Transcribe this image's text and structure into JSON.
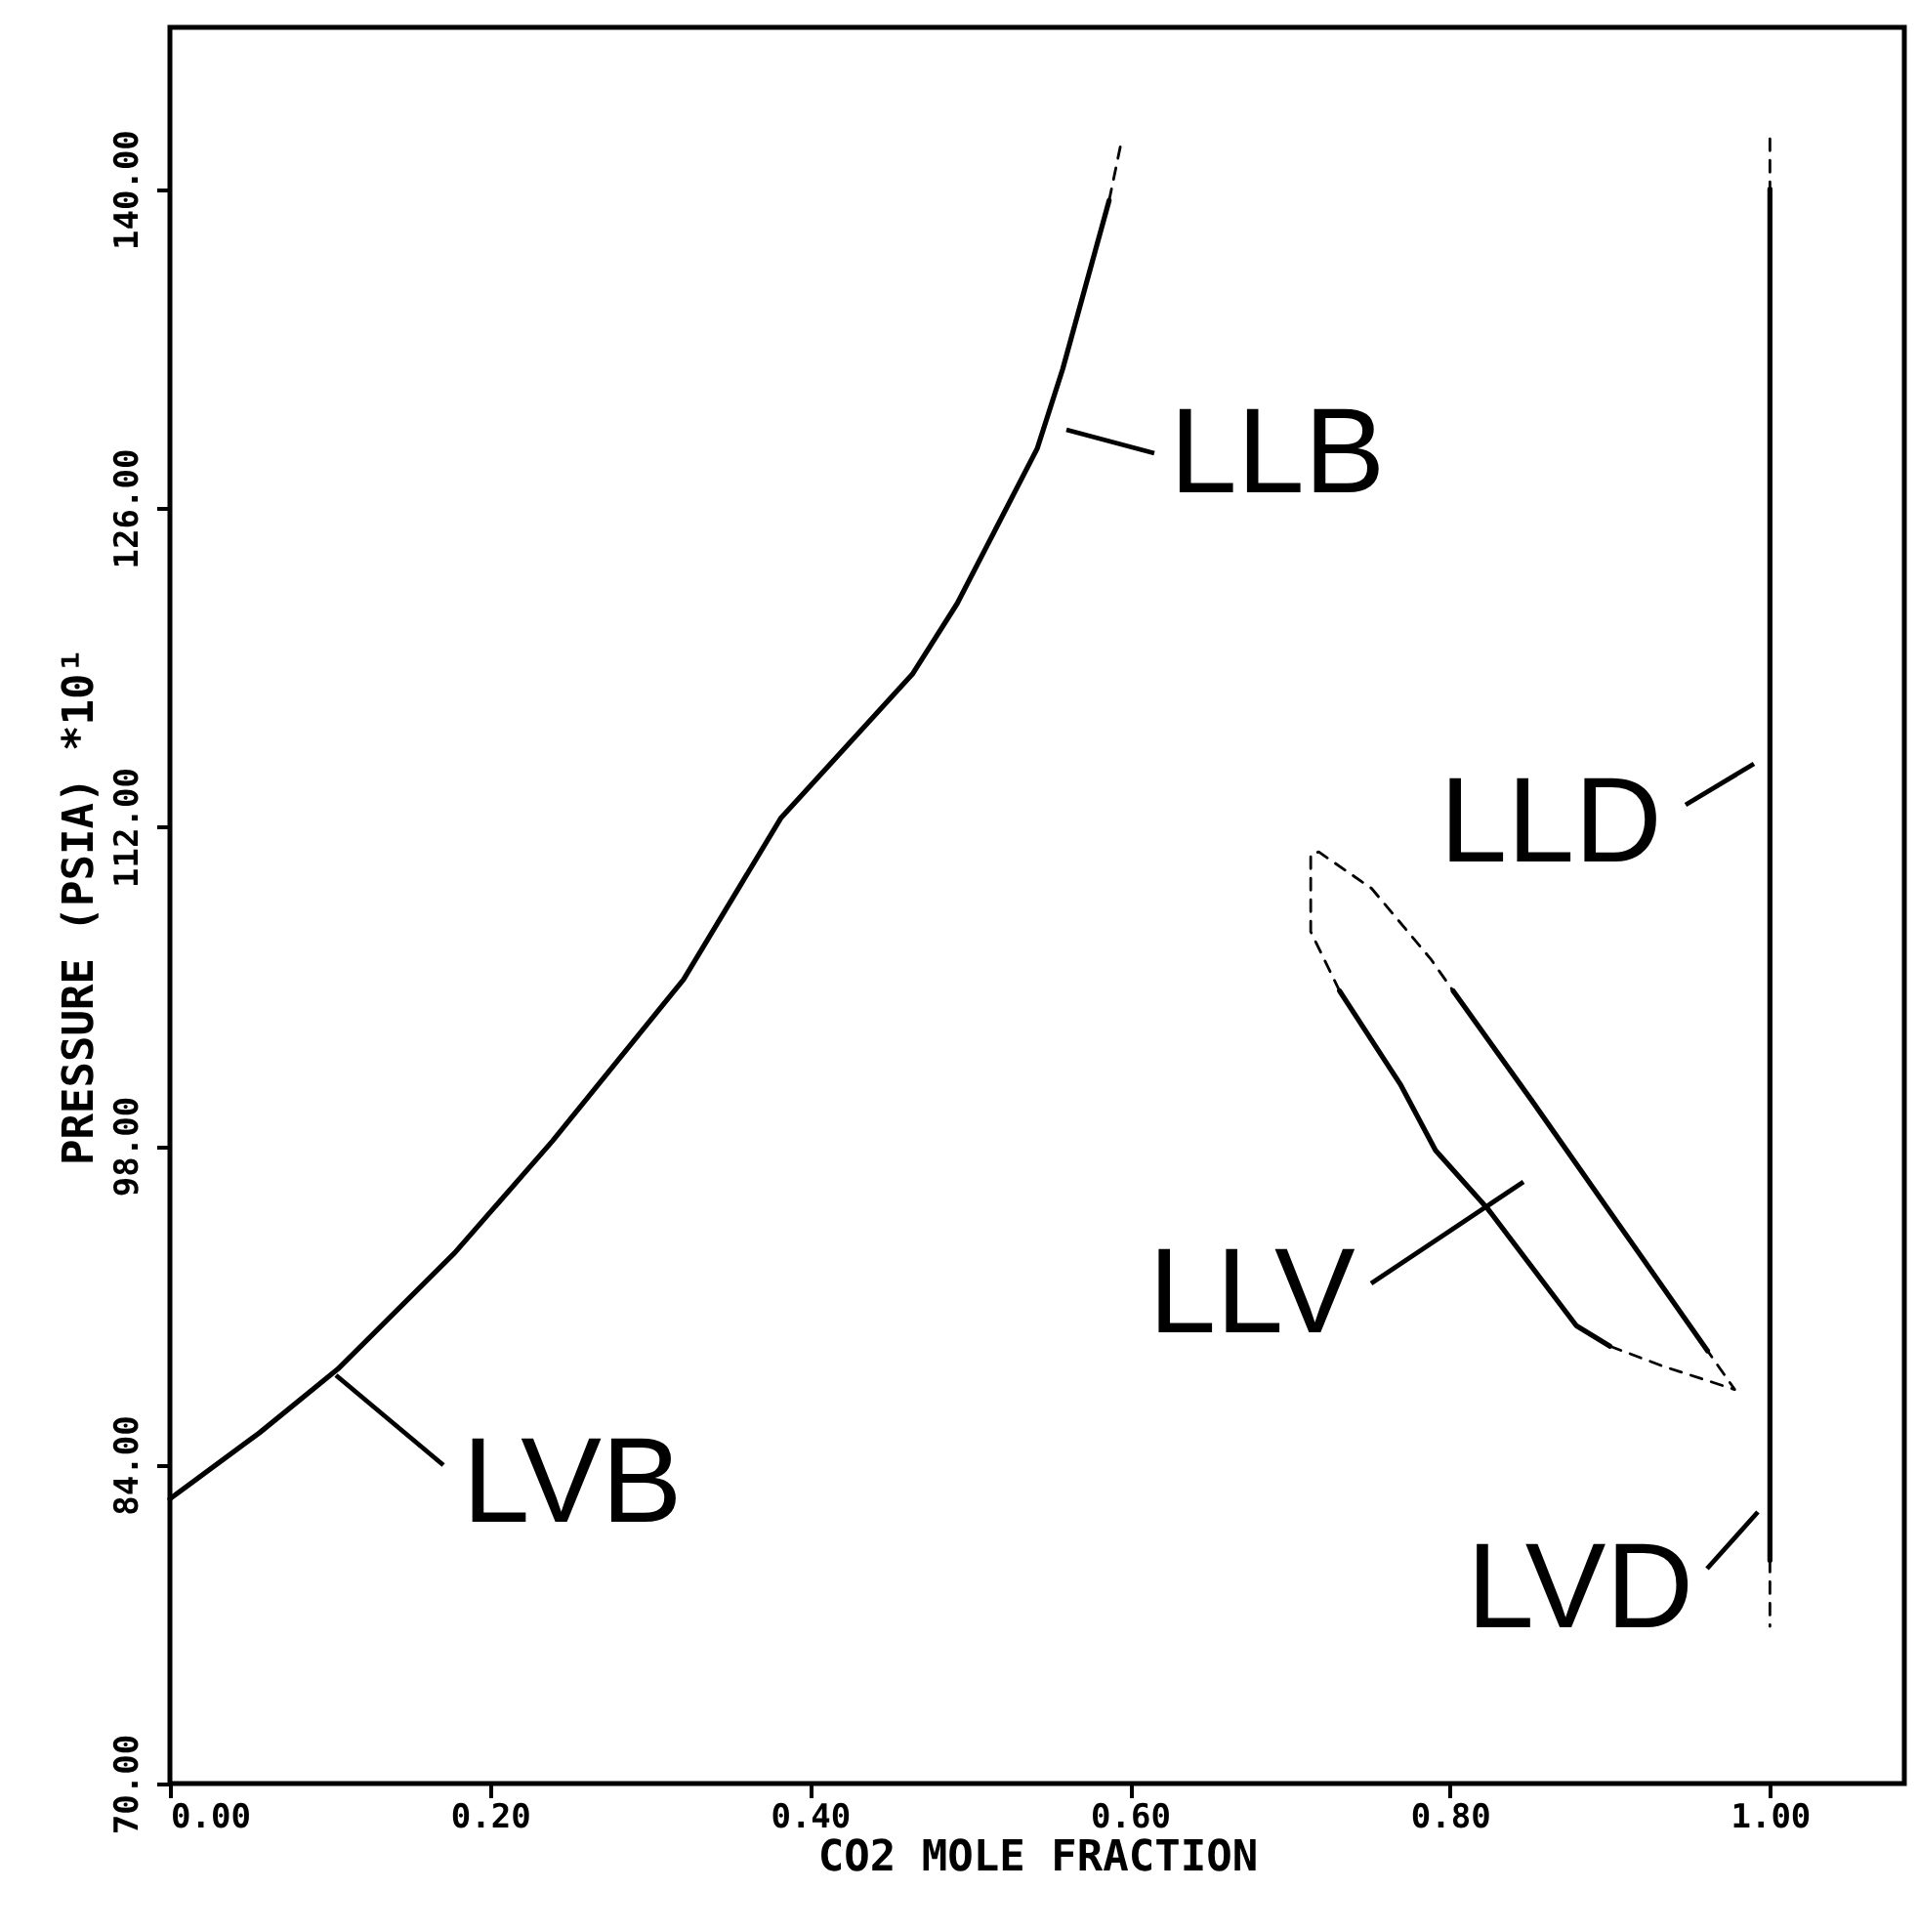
{
  "chart_data": {
    "type": "line",
    "xlabel": "CO2 MOLE FRACTION",
    "ylabel": "PRESSURE (PSIA) *10¹",
    "xlim": [
      0,
      1.084
    ],
    "ylim": [
      70,
      147.1
    ],
    "xticks": [
      {
        "value": 0,
        "label": "0.00"
      },
      {
        "value": 0.2,
        "label": "0.20"
      },
      {
        "value": 0.4,
        "label": "0.40"
      },
      {
        "value": 0.6,
        "label": "0.60"
      },
      {
        "value": 0.8,
        "label": "0.80"
      },
      {
        "value": 1.0,
        "label": "1.00"
      }
    ],
    "yticks": [
      {
        "value": 70,
        "label": "70.00"
      },
      {
        "value": 84,
        "label": "84.00"
      },
      {
        "value": 98,
        "label": "98.00"
      },
      {
        "value": 112,
        "label": "112.00"
      },
      {
        "value": 126,
        "label": "126.00"
      },
      {
        "value": 140,
        "label": "140.00"
      }
    ],
    "grid": false,
    "series": [
      {
        "color": "#000000",
        "line_style": "solid",
        "x": [
          0,
          0.056,
          0.105,
          0.178,
          0.239,
          0.321,
          0.382,
          0.464,
          0.492,
          0.542,
          0.558,
          0.587
        ],
        "values": [
          82.5,
          85.4,
          88.2,
          93.3,
          98.2,
          105.3,
          112.4,
          118.7,
          121.8,
          128.6,
          132.1,
          139.5
        ]
      },
      {
        "color": "#000000",
        "line_style": "dashed",
        "x": [
          0.587,
          0.595
        ],
        "values": [
          139.5,
          142.2
        ]
      },
      {
        "color": "#000000",
        "line_style": "solid",
        "x": [
          0.731,
          0.769,
          0.791,
          0.824,
          0.879,
          0.9
        ],
        "values": [
          104.8,
          100.7,
          97.8,
          95.2,
          90.1,
          89.2
        ]
      },
      {
        "color": "#000000",
        "line_style": "solid",
        "x": [
          0.802,
          0.851,
          0.906,
          0.961
        ],
        "values": [
          104.8,
          100.0,
          94.5,
          89.0
        ]
      },
      {
        "color": "#000000",
        "line_style": "dashed",
        "x": [
          0.731,
          0.713,
          0.713,
          0.718,
          0.751,
          0.788,
          0.802
        ],
        "values": [
          104.8,
          107.4,
          110.8,
          110.9,
          109.3,
          106.2,
          104.8
        ]
      },
      {
        "color": "#000000",
        "line_style": "dashed",
        "x": [
          0.9,
          0.934,
          0.978,
          0.961
        ],
        "values": [
          89.2,
          88.3,
          87.3,
          89.0
        ]
      },
      {
        "color": "#000000",
        "line_style": "solid",
        "x": [
          1.0,
          1.0,
          1.0
        ],
        "values": [
          140.0,
          114.6,
          79.8
        ]
      },
      {
        "color": "#000000",
        "line_style": "dashed",
        "x": [
          1.0,
          1.0
        ],
        "values": [
          142.2,
          140.0
        ]
      },
      {
        "color": "#000000",
        "line_style": "dashed",
        "x": [
          1.0,
          1.0
        ],
        "values": [
          79.8,
          76.9
        ]
      }
    ],
    "annotations": [
      "LVB",
      "LLB",
      "LLD",
      "LLV",
      "LVD"
    ]
  }
}
